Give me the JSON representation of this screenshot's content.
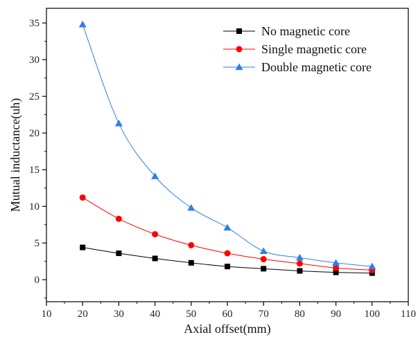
{
  "chart_data": {
    "type": "line",
    "title": "",
    "xlabel": "Axial offset(mm)",
    "ylabel": "Mutual inductance(uh)",
    "xlim": [
      10,
      110
    ],
    "ylim": [
      -3,
      37
    ],
    "xticks": [
      10,
      20,
      30,
      40,
      50,
      60,
      70,
      80,
      90,
      100,
      110
    ],
    "yticks": [
      0,
      5,
      10,
      15,
      20,
      25,
      30,
      35
    ],
    "grid": false,
    "legend_position": "top-right",
    "x": [
      20,
      30,
      40,
      50,
      60,
      70,
      80,
      90,
      100
    ],
    "series": [
      {
        "name": "No magnetic core",
        "marker": "square",
        "color": "#000000",
        "values": [
          4.4,
          3.6,
          2.9,
          2.3,
          1.8,
          1.5,
          1.2,
          1.0,
          0.9
        ]
      },
      {
        "name": "Single magnetic core",
        "marker": "circle",
        "color": "#ff0000",
        "values": [
          11.2,
          8.3,
          6.2,
          4.7,
          3.6,
          2.8,
          2.2,
          1.6,
          1.3
        ]
      },
      {
        "name": "Double magnetic core",
        "marker": "triangle",
        "color": "#2f7fe8",
        "values": [
          34.8,
          21.3,
          14.1,
          9.8,
          7.1,
          3.9,
          3.0,
          2.3,
          1.8
        ]
      }
    ]
  }
}
